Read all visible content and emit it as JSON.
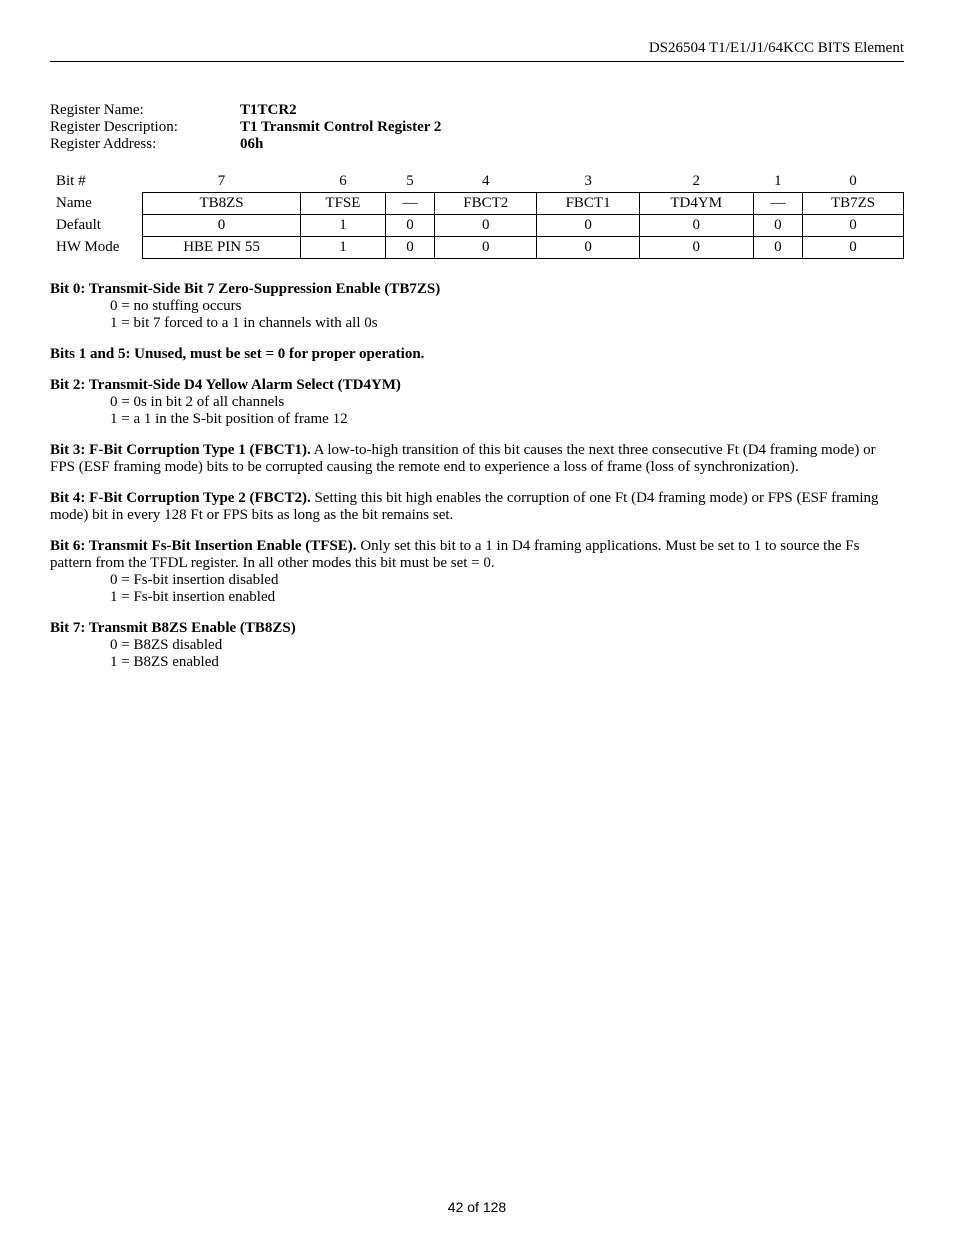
{
  "header": "DS26504 T1/E1/J1/64KCC BITS Element",
  "register": {
    "name_label": "Register Name:",
    "name_value": "T1TCR2",
    "desc_label": "Register Description:",
    "desc_value": "T1 Transmit Control Register 2",
    "addr_label": "Register Address:",
    "addr_value": "06h"
  },
  "table": {
    "row_labels": [
      "Bit #",
      "Name",
      "Default",
      "HW Mode"
    ],
    "bitnums": [
      "7",
      "6",
      "5",
      "4",
      "3",
      "2",
      "1",
      "0"
    ],
    "names": [
      "TB8ZS",
      "TFSE",
      "—",
      "FBCT2",
      "FBCT1",
      "TD4YM",
      "—",
      "TB7ZS"
    ],
    "defaults": [
      "0",
      "1",
      "0",
      "0",
      "0",
      "0",
      "0",
      "0"
    ],
    "hwmode": [
      "HBE PIN 55",
      "1",
      "0",
      "0",
      "0",
      "0",
      "0",
      "0"
    ]
  },
  "bits": {
    "b0": {
      "title": "Bit 0: Transmit-Side Bit 7 Zero-Suppression Enable (TB7ZS)",
      "v0": "0 = no stuffing occurs",
      "v1": "1 = bit 7 forced to a 1 in channels with all 0s"
    },
    "b15": {
      "title": "Bits 1 and 5: Unused, must be set = 0 for proper operation."
    },
    "b2": {
      "title": "Bit 2: Transmit-Side D4 Yellow Alarm Select (TD4YM)",
      "v0": "0 = 0s in bit 2 of all channels",
      "v1": "1 = a 1 in the S-bit position of frame 12"
    },
    "b3": {
      "title": "Bit 3: F-Bit Corruption Type 1 (FBCT1).",
      "body": " A low-to-high transition of this bit causes the next three consecutive Ft (D4 framing mode) or FPS (ESF framing mode) bits to be corrupted causing the remote end to experience a loss of frame (loss of synchronization)."
    },
    "b4": {
      "title": "Bit 4: F-Bit Corruption Type 2 (FBCT2).",
      "body": " Setting this bit high enables the corruption of one Ft (D4 framing mode) or FPS (ESF framing mode) bit in every 128 Ft or FPS bits as long as the bit remains set."
    },
    "b6": {
      "title": "Bit 6: Transmit Fs-Bit Insertion Enable (TFSE).",
      "body": " Only set this bit to a 1 in D4 framing applications. Must be set to 1 to source the Fs pattern from the TFDL register.  In all other modes this bit must be set = 0.",
      "v0": "0 = Fs-bit insertion disabled",
      "v1": "1 = Fs-bit insertion enabled"
    },
    "b7": {
      "title": "Bit 7: Transmit B8ZS Enable (TB8ZS)",
      "v0": "0 = B8ZS disabled",
      "v1": "1 = B8ZS enabled"
    }
  },
  "footer": "42 of 128"
}
